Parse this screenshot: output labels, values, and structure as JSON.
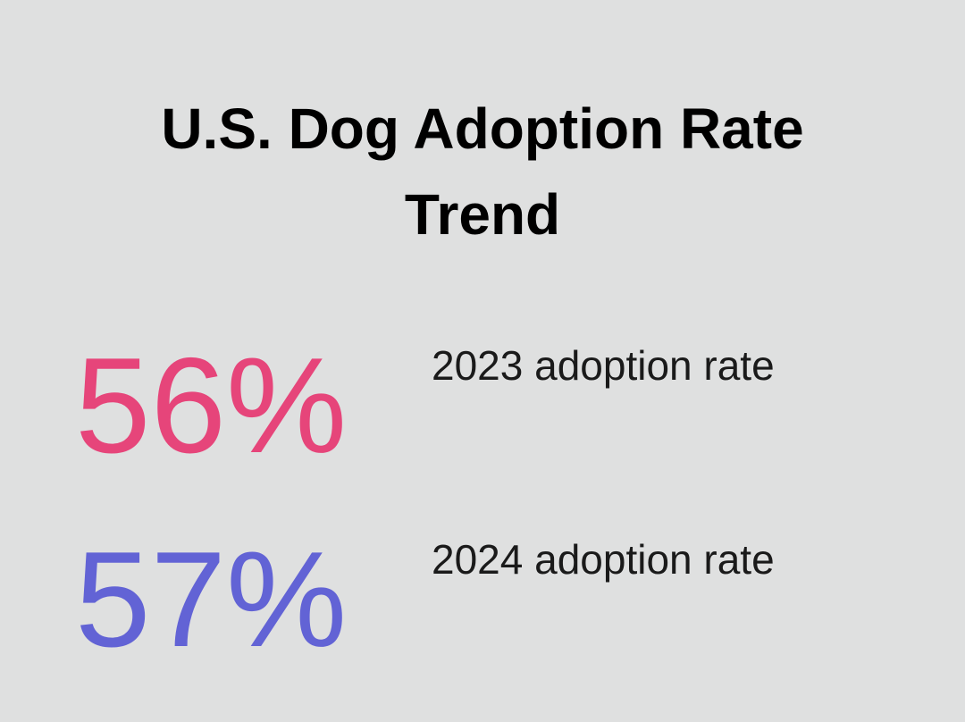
{
  "title": "U.S. Dog Adoption Rate Trend",
  "stats": [
    {
      "value": "56%",
      "label": "2023 adoption rate",
      "color": "#e6457a"
    },
    {
      "value": "57%",
      "label": "2024 adoption rate",
      "color": "#6263d5"
    }
  ]
}
